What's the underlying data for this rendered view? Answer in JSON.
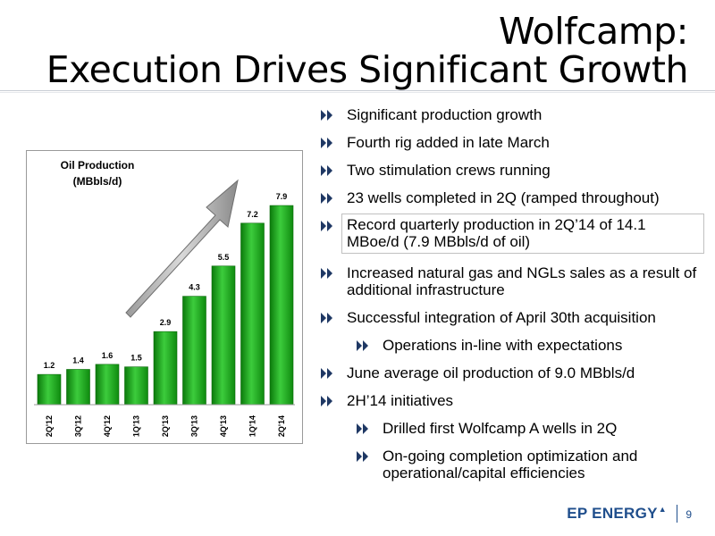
{
  "title": {
    "line1": "Wolfcamp:",
    "line2": "Execution Drives Significant Growth"
  },
  "bullets": [
    {
      "text": "Significant production growth",
      "level": 1
    },
    {
      "text": "Fourth rig added in late March",
      "level": 1
    },
    {
      "text": "Two stimulation crews running",
      "level": 1
    },
    {
      "text": "23 wells completed in 2Q (ramped throughout)",
      "level": 1
    },
    {
      "text": "Record quarterly production in 2Q’14 of 14.1 MBoe/d  (7.9 MBbls/d of oil)",
      "level": 1,
      "boxed": true
    },
    {
      "text": "Increased natural gas and NGLs sales as a result of additional infrastructure",
      "level": 1
    },
    {
      "text": "Successful integration of April 30th acquisition",
      "level": 1
    },
    {
      "text": "Operations in-line with expectations",
      "level": 2
    },
    {
      "text": "June average oil production of 9.0 MBbls/d",
      "level": 1
    },
    {
      "text": "2H’14 initiatives",
      "level": 1
    },
    {
      "text": "Drilled first Wolfcamp A wells in 2Q",
      "level": 2
    },
    {
      "text": "On-going completion optimization and operational/capital efficiencies",
      "level": 2
    }
  ],
  "chart_data": {
    "type": "bar",
    "title": "Oil Production",
    "subtitle": "(MBbls/d)",
    "categories": [
      "2Q'12",
      "3Q'12",
      "4Q'12",
      "1Q'13",
      "2Q'13",
      "3Q'13",
      "4Q'13",
      "1Q'14",
      "2Q'14"
    ],
    "values": [
      1.2,
      1.4,
      1.6,
      1.5,
      2.9,
      4.3,
      5.5,
      7.2,
      7.9
    ],
    "data_labels": [
      "1.2",
      "1.4",
      "1.6",
      "1.5",
      "2.9",
      "4.3",
      "5.5",
      "7.2",
      "7.9"
    ],
    "ylim": [
      0,
      9
    ],
    "grid": false,
    "bar_color": "#1aa31a",
    "annotation": "upward growth arrow"
  },
  "footer": {
    "logo": "EP ENERGY",
    "page": "9"
  },
  "colors": {
    "bullet_marker": "#1f3864",
    "logo": "#1f4e8c"
  }
}
